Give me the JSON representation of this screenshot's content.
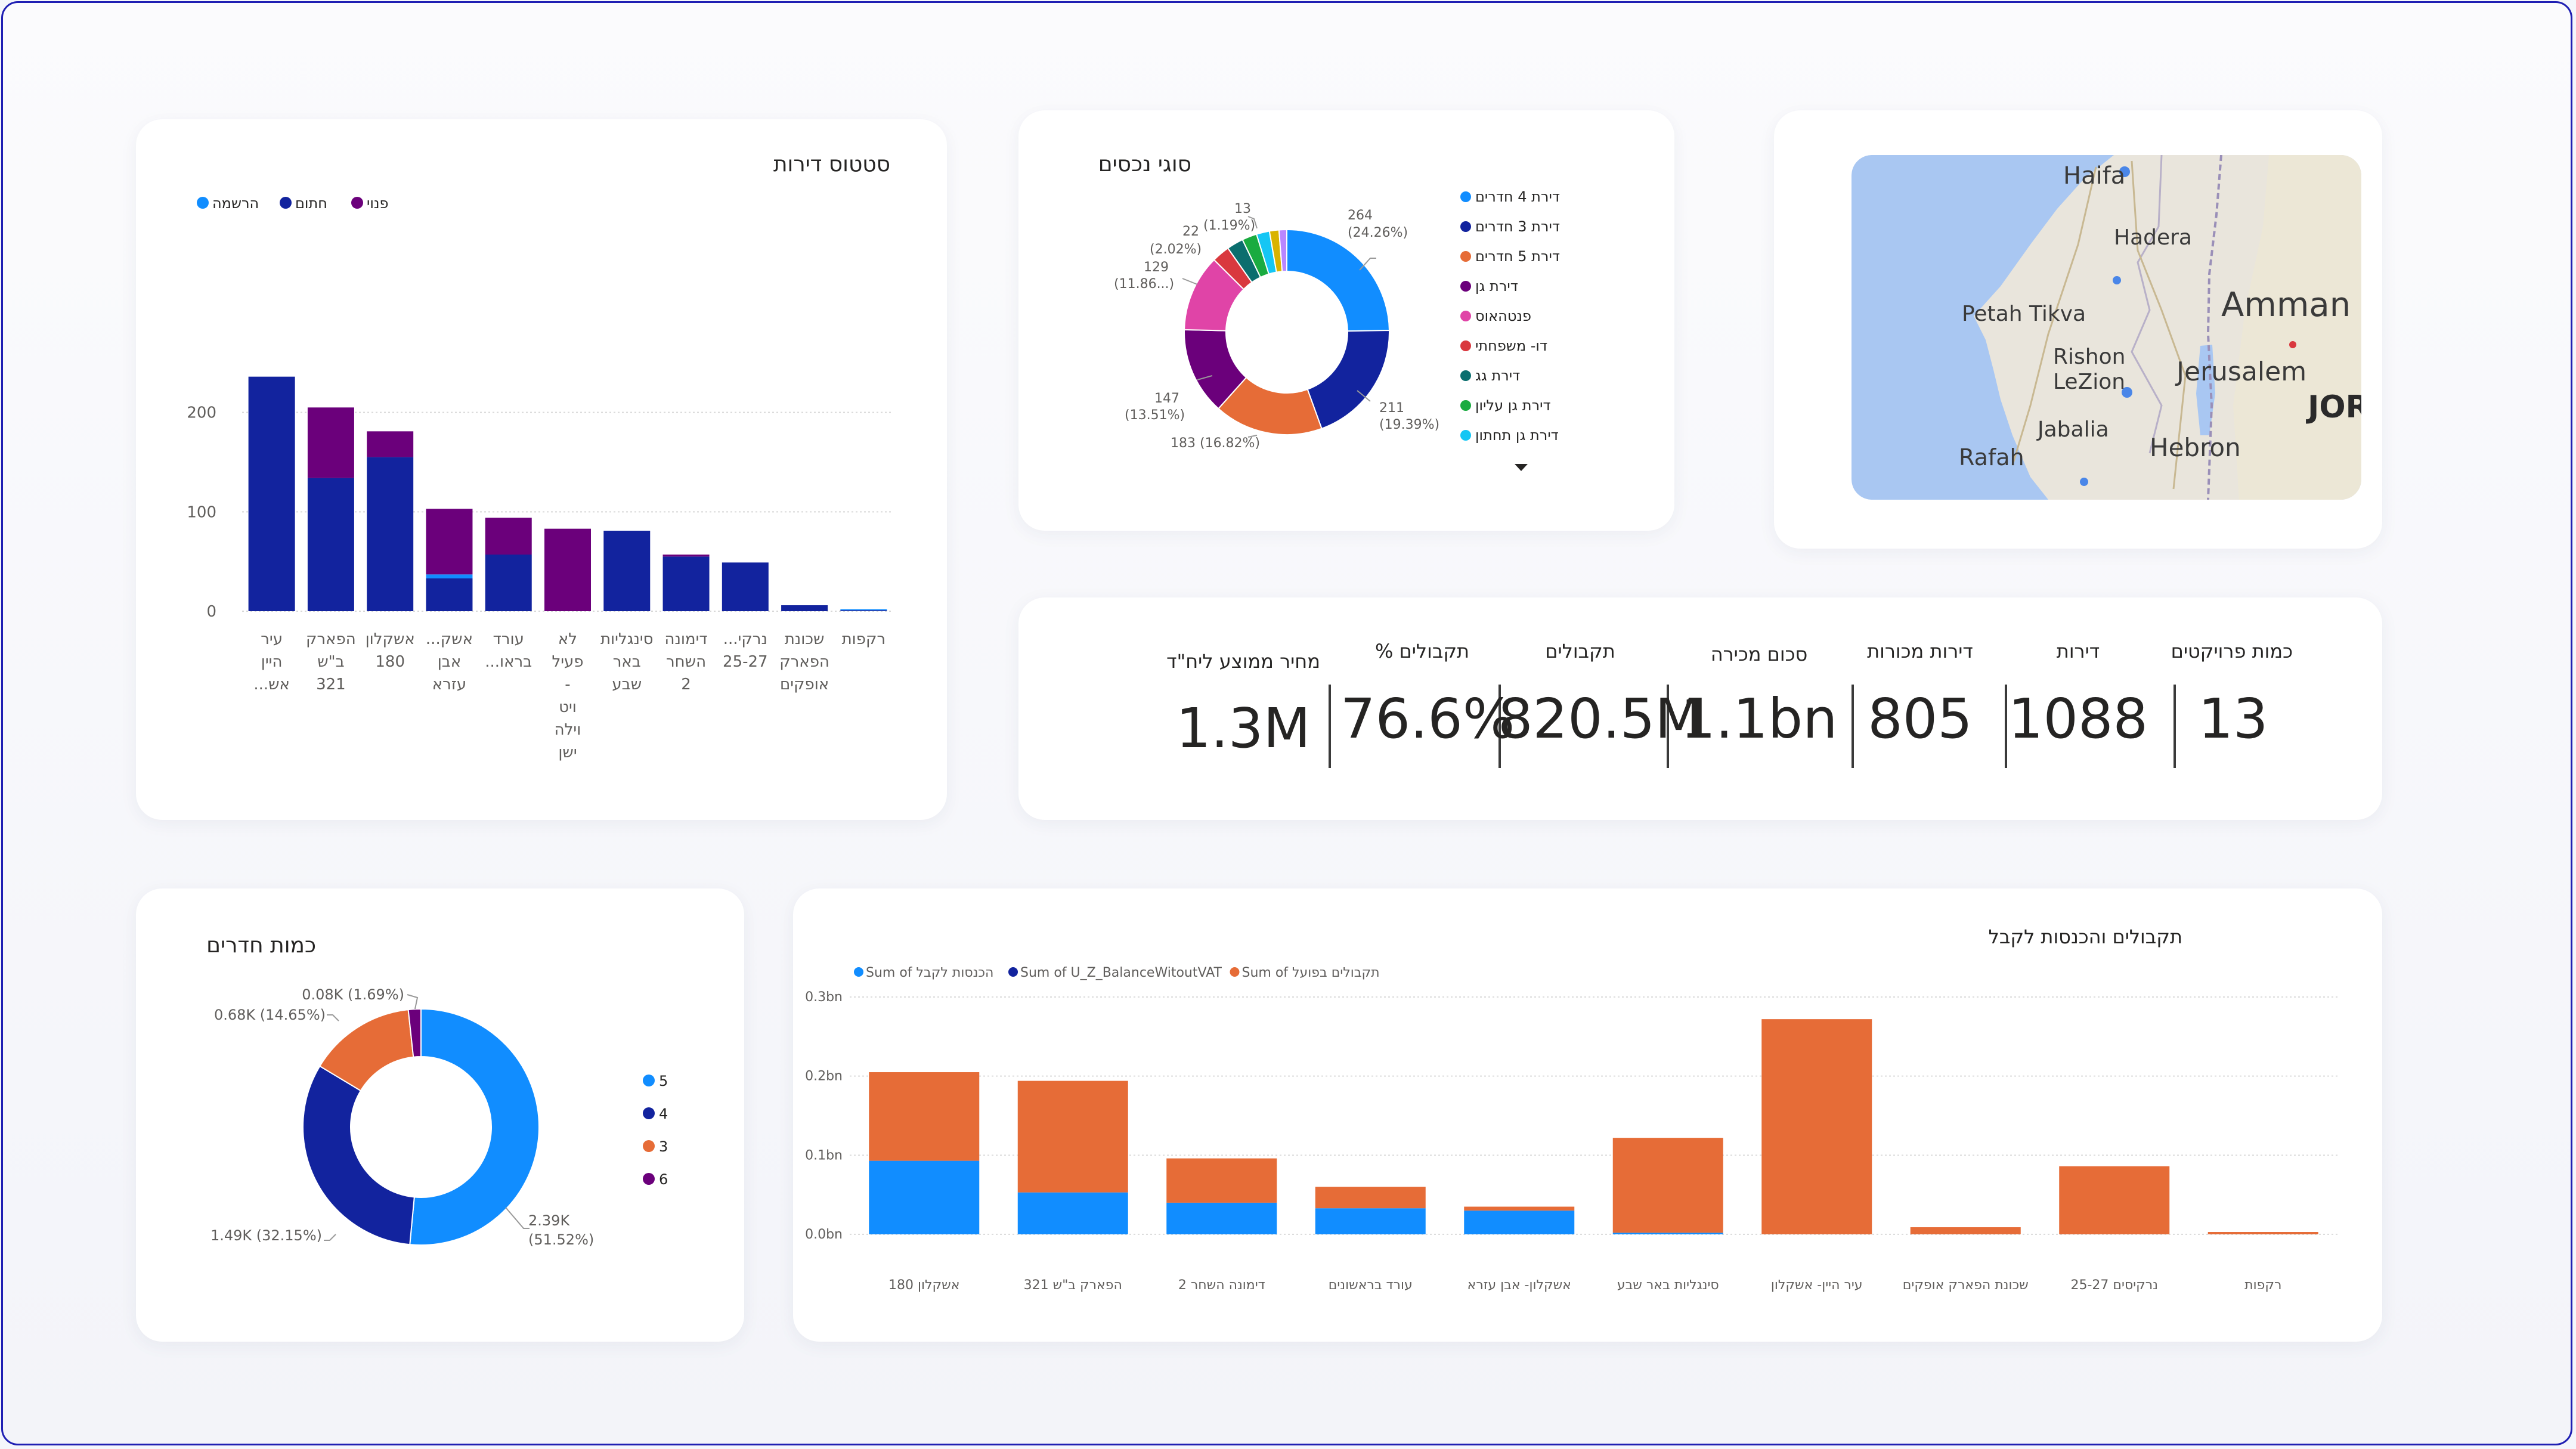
{
  "colors": {
    "light_blue": "#118dff",
    "dark_blue": "#12239e",
    "orange": "#e66c37",
    "purple": "#6b007b",
    "pink": "#e044a7",
    "red": "#d9383e",
    "teal": "#0b6e6e",
    "green": "#1aab40",
    "cyan": "#15c6f4",
    "yellow": "#d9b300",
    "lilac": "#b887ff",
    "gray": "#a0a0a0"
  },
  "status_chart": {
    "title": "סטטוס דירות",
    "chart_data": {
      "type": "bar",
      "stacked": true,
      "categories": [
        "עיר היין אש...",
        "הפארק ב\"ש 321",
        "אשקלון 180",
        "אשק... אבן עזרא",
        "עורד בראשו...",
        "לא פעיל - ויט וילה ישן",
        "סינגליות באר שבע",
        "דימונה השחר 2",
        "נרקי... 25-27",
        "שכונת הפארק אופקים",
        "רקפות"
      ],
      "tick_labels": [
        [
          "עיר",
          "היין",
          "אש..."
        ],
        [
          "הפארק",
          "ב\"ש",
          "321"
        ],
        [
          "אשקלון",
          "180"
        ],
        [
          "אשק...",
          "אבן",
          "עזרא"
        ],
        [
          "עורד",
          "בראו..."
        ],
        [
          "לא",
          "פעיל",
          "-",
          "ויט",
          "וילה",
          "ישן"
        ],
        [
          "סינגליות",
          "באר",
          "שבע"
        ],
        [
          "דימונה",
          "השחר",
          "2"
        ],
        [
          "נרקי...",
          "25-27"
        ],
        [
          "שכונת",
          "הפארק",
          "אופקים"
        ],
        [
          "רקפות"
        ]
      ],
      "series": [
        {
          "name": "הרשמה",
          "values": [
            0,
            0,
            0,
            4,
            0,
            0,
            0,
            0,
            0,
            0,
            1
          ]
        },
        {
          "name": "חתום",
          "values": [
            236,
            134,
            155,
            33,
            57,
            0,
            81,
            55,
            49,
            6,
            1
          ]
        },
        {
          "name": "פנוי",
          "values": [
            0,
            71,
            26,
            66,
            37,
            83,
            0,
            2,
            0,
            0,
            0
          ]
        }
      ],
      "ylim": [
        0,
        240
      ],
      "yticks": [
        0,
        100,
        200
      ],
      "grid": true,
      "legend": "top-left"
    }
  },
  "property_types": {
    "title": "סוגי נכסים",
    "chart_data": {
      "type": "pie",
      "donut": true,
      "slices": [
        {
          "label": "דירת 4 חדרים",
          "value": 264,
          "percent": "24.26%"
        },
        {
          "label": "דירת 3 חדרים",
          "value": 211,
          "percent": "19.39%"
        },
        {
          "label": "דירת 5 חדרים",
          "value": 183,
          "percent": "16.82%"
        },
        {
          "label": "דירת גן",
          "value": 147,
          "percent": "13.51%"
        },
        {
          "label": "פנטהאוס",
          "value": 129,
          "percent": "11.86..."
        },
        {
          "label": "דו- משפחתי",
          "value": 30,
          "percent": ""
        },
        {
          "label": "דירת גג",
          "value": 28,
          "percent": ""
        },
        {
          "label": "דירת גן עליון",
          "value": 25,
          "percent": ""
        },
        {
          "label": "דירת גן תחתון",
          "value": 22,
          "percent": "2.02%"
        },
        {
          "label": "",
          "value": 16,
          "percent": ""
        },
        {
          "label": "",
          "value": 13,
          "percent": "1.19%"
        }
      ],
      "legend": "right"
    },
    "data_labels": {
      "a": [
        "264",
        "(24.26%)"
      ],
      "b": [
        "211",
        "(19.39%)"
      ],
      "c": [
        "183 (16.82%)"
      ],
      "d": [
        "147",
        "(13.51%)"
      ],
      "e": [
        "129",
        "(11.86...)"
      ],
      "f": [
        "22",
        "(2.02%)"
      ],
      "g": [
        "13",
        "(1.19%)"
      ]
    },
    "more_icon": "chevron-down-icon"
  },
  "map": {
    "labels": [
      "Haifa",
      "Hadera",
      "Petah Tikva",
      "Amman",
      "Rishon",
      "LeZion",
      "Jerusalem",
      "Jabalia",
      "Hebron",
      "Rafah",
      "JOR"
    ]
  },
  "kpis": [
    {
      "label": "כמות פרויקטים",
      "value": "13"
    },
    {
      "label": "דירות",
      "value": "1088"
    },
    {
      "label": "דירות מכורות",
      "value": "805"
    },
    {
      "label": "סכום מכירה",
      "value": "1.1bn"
    },
    {
      "label": "תקבולים",
      "value": "820.5M"
    },
    {
      "label": "תקבולים %",
      "value": "76.6%"
    },
    {
      "label": "מחיר ממוצע ליח\"ד",
      "value": "1.3M"
    }
  ],
  "rooms_chart": {
    "title": "כמות חדרים",
    "chart_data": {
      "type": "pie",
      "donut": true,
      "slices": [
        {
          "label": "5",
          "value": 2.39,
          "display": "2.39K",
          "percent": "51.52%"
        },
        {
          "label": "4",
          "value": 1.49,
          "display": "1.49K",
          "percent": "32.15%"
        },
        {
          "label": "3",
          "value": 0.68,
          "display": "0.68K",
          "percent": "14.65%"
        },
        {
          "label": "6",
          "value": 0.08,
          "display": "0.08K",
          "percent": "1.69%"
        }
      ],
      "legend": "right"
    },
    "data_labels": {
      "a": [
        "2.39K",
        "(51.52%)"
      ],
      "b": "1.49K (32.15%)",
      "c": "0.68K (14.65%)",
      "d": "0.08K (1.69%)"
    }
  },
  "receipts_chart": {
    "title": "תקבולים והכנסות לקבל",
    "chart_data": {
      "type": "bar",
      "stacked": true,
      "categories": [
        "אשקלון 180",
        "הפארק ב\"ש 321",
        "דימונה השחר 2",
        "עורד בראשונים",
        "אשקלון- אבן עזרא",
        "סינגליות באר שבע",
        "עיר היין- אשקלון",
        "שכונת הפארק אופקים",
        "נרקיסים 25-27",
        "רקפות"
      ],
      "series": [
        {
          "name": "Sum of הכנסות לקבל",
          "values": [
            0.093,
            0.053,
            0.04,
            0.033,
            0.03,
            0.002,
            0,
            0,
            0,
            0
          ]
        },
        {
          "name": "Sum of U_Z_BalanceWitoutVAT",
          "values": [
            0,
            0,
            0,
            0,
            0,
            0,
            0,
            0,
            0,
            0
          ]
        },
        {
          "name": "Sum of תקבולים בפועל",
          "values": [
            0.112,
            0.141,
            0.056,
            0.027,
            0.005,
            0.12,
            0.272,
            0.009,
            0.086,
            0.003
          ]
        }
      ],
      "yticks": [
        "0.0bn",
        "0.1bn",
        "0.2bn",
        "0.3bn"
      ],
      "ylim": [
        0,
        0.3
      ],
      "grid": true,
      "legend": "top-left"
    }
  }
}
